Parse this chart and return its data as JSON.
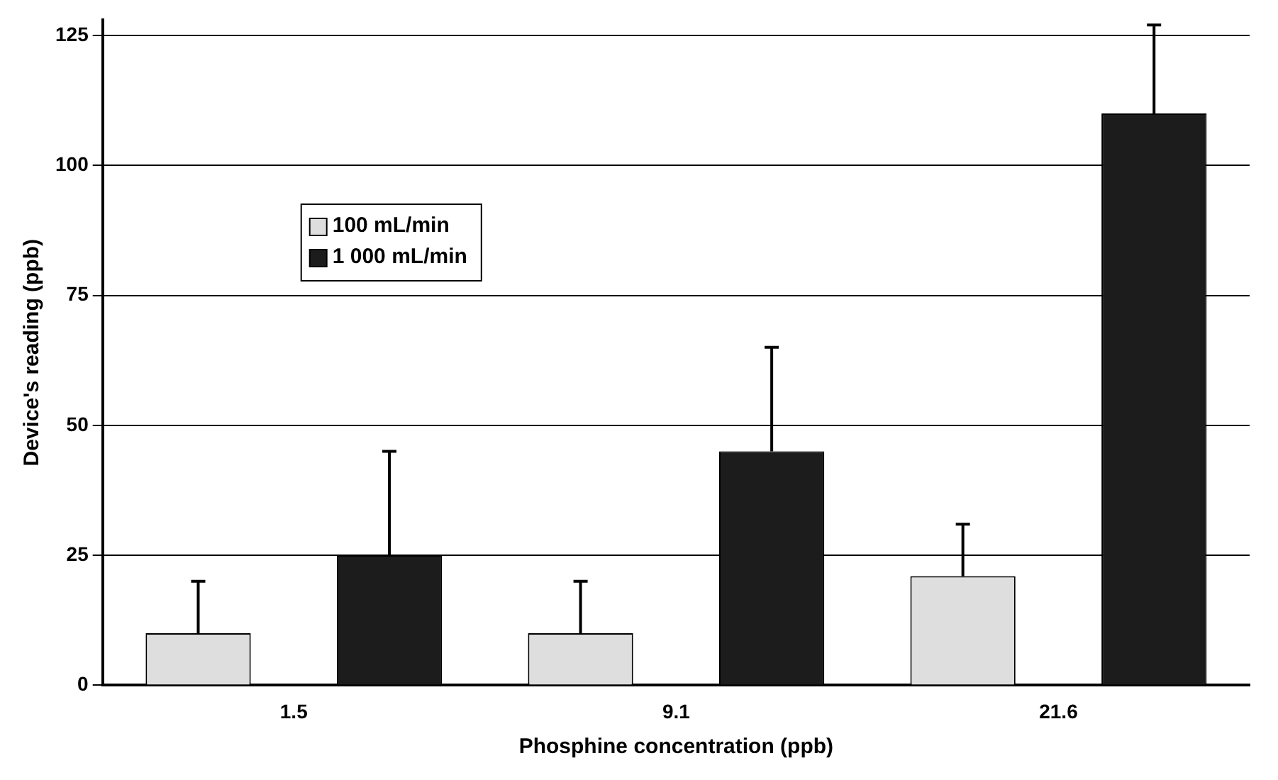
{
  "chart_data": {
    "type": "bar",
    "xlabel": "Phosphine concentration (ppb)",
    "ylabel": "Device's reading (ppb)",
    "categories": [
      "1.5",
      "9.1",
      "21.6"
    ],
    "series": [
      {
        "name": "100 mL/min",
        "color": "#dedede",
        "values": [
          10,
          10,
          21
        ],
        "errors": [
          [
            10,
            20
          ],
          [
            10,
            20
          ],
          [
            21,
            31
          ]
        ]
      },
      {
        "name": "1 000 mL/min",
        "color": "#1c1c1c",
        "values": [
          25,
          45,
          110
        ],
        "errors": [
          [
            25,
            45
          ],
          [
            45,
            65
          ],
          [
            110,
            127
          ]
        ]
      }
    ],
    "ylim": [
      0,
      128
    ],
    "yticks": [
      0,
      25,
      50,
      75,
      100,
      125
    ],
    "grid": "y",
    "legend": "top left"
  }
}
